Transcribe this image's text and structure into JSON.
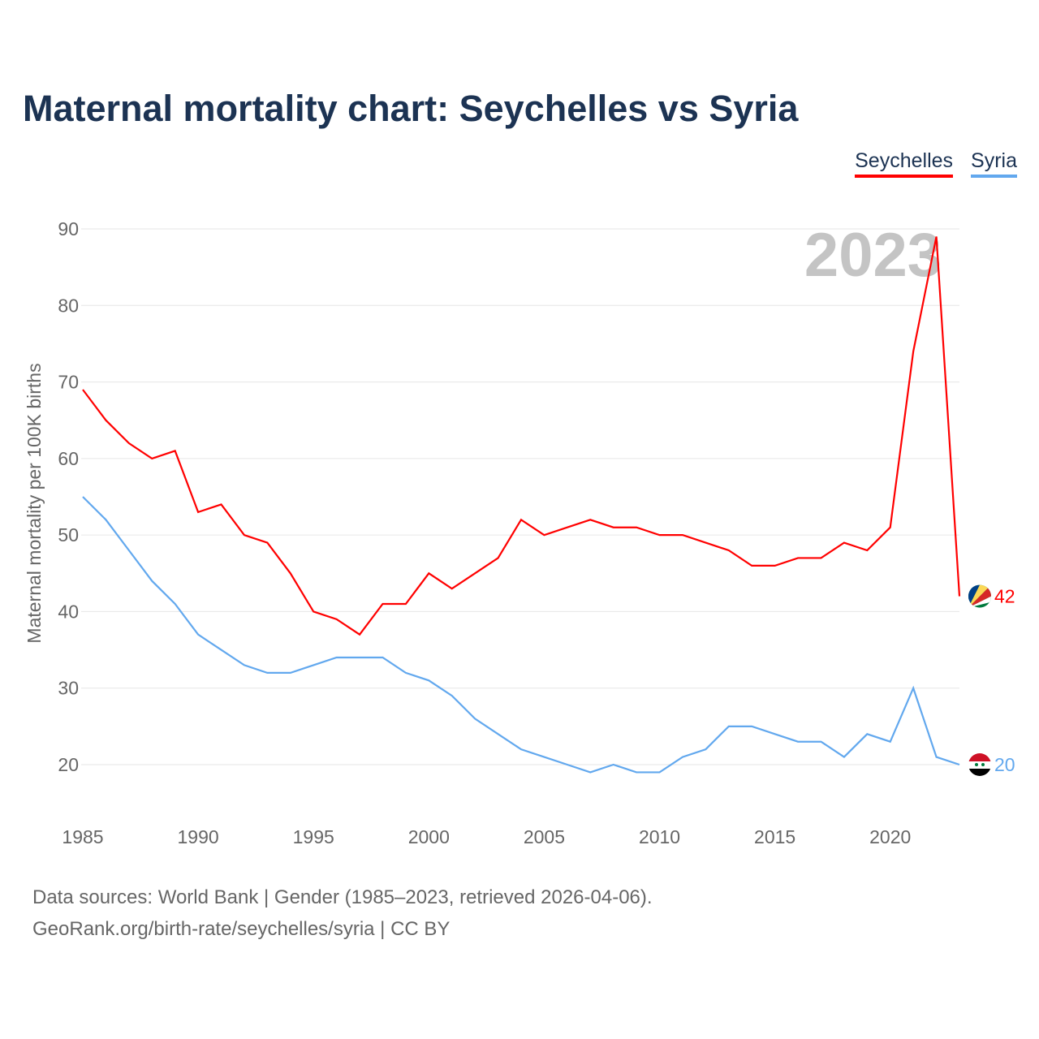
{
  "title": "Maternal mortality chart: Seychelles vs Syria",
  "footer": {
    "line1": "Data sources: World Bank | Gender (1985–2023, retrieved 2026-04-06).",
    "line2": "GeoRank.org/birth-rate/seychelles/syria | CC BY"
  },
  "chart_data": {
    "type": "line",
    "title": "Maternal mortality chart: Seychelles vs Syria",
    "xlabel": "",
    "ylabel": "Maternal mortality per 100K births",
    "year_label": "2023",
    "xlim": [
      1985,
      2023
    ],
    "ylim": [
      15,
      90
    ],
    "grid": true,
    "legend_position": "top-right",
    "x_ticks": [
      "1985",
      "1990",
      "1995",
      "2000",
      "2005",
      "2010",
      "2015",
      "2020"
    ],
    "y_ticks": [
      "20",
      "30",
      "40",
      "50",
      "60",
      "70",
      "80",
      "90"
    ],
    "x": [
      1985,
      1986,
      1987,
      1988,
      1989,
      1990,
      1991,
      1992,
      1993,
      1994,
      1995,
      1996,
      1997,
      1998,
      1999,
      2000,
      2001,
      2002,
      2003,
      2004,
      2005,
      2006,
      2007,
      2008,
      2009,
      2010,
      2011,
      2012,
      2013,
      2014,
      2015,
      2016,
      2017,
      2018,
      2019,
      2020,
      2021,
      2022,
      2023
    ],
    "series": [
      {
        "name": "Seychelles",
        "color": "#ff0000",
        "end_label": "42",
        "values": [
          69,
          65,
          62,
          60,
          61,
          53,
          54,
          50,
          49,
          45,
          40,
          39,
          37,
          41,
          41,
          45,
          43,
          45,
          47,
          52,
          50,
          51,
          52,
          51,
          51,
          50,
          50,
          49,
          48,
          46,
          46,
          47,
          47,
          49,
          48,
          51,
          74,
          89,
          42
        ]
      },
      {
        "name": "Syria",
        "color": "#62a8ee",
        "end_label": "20",
        "values": [
          55,
          52,
          48,
          44,
          41,
          37,
          35,
          33,
          32,
          32,
          33,
          34,
          34,
          34,
          32,
          31,
          29,
          26,
          24,
          22,
          21,
          20,
          19,
          20,
          19,
          19,
          21,
          22,
          25,
          25,
          24,
          23,
          23,
          21,
          24,
          23,
          30,
          21,
          20
        ]
      }
    ]
  }
}
